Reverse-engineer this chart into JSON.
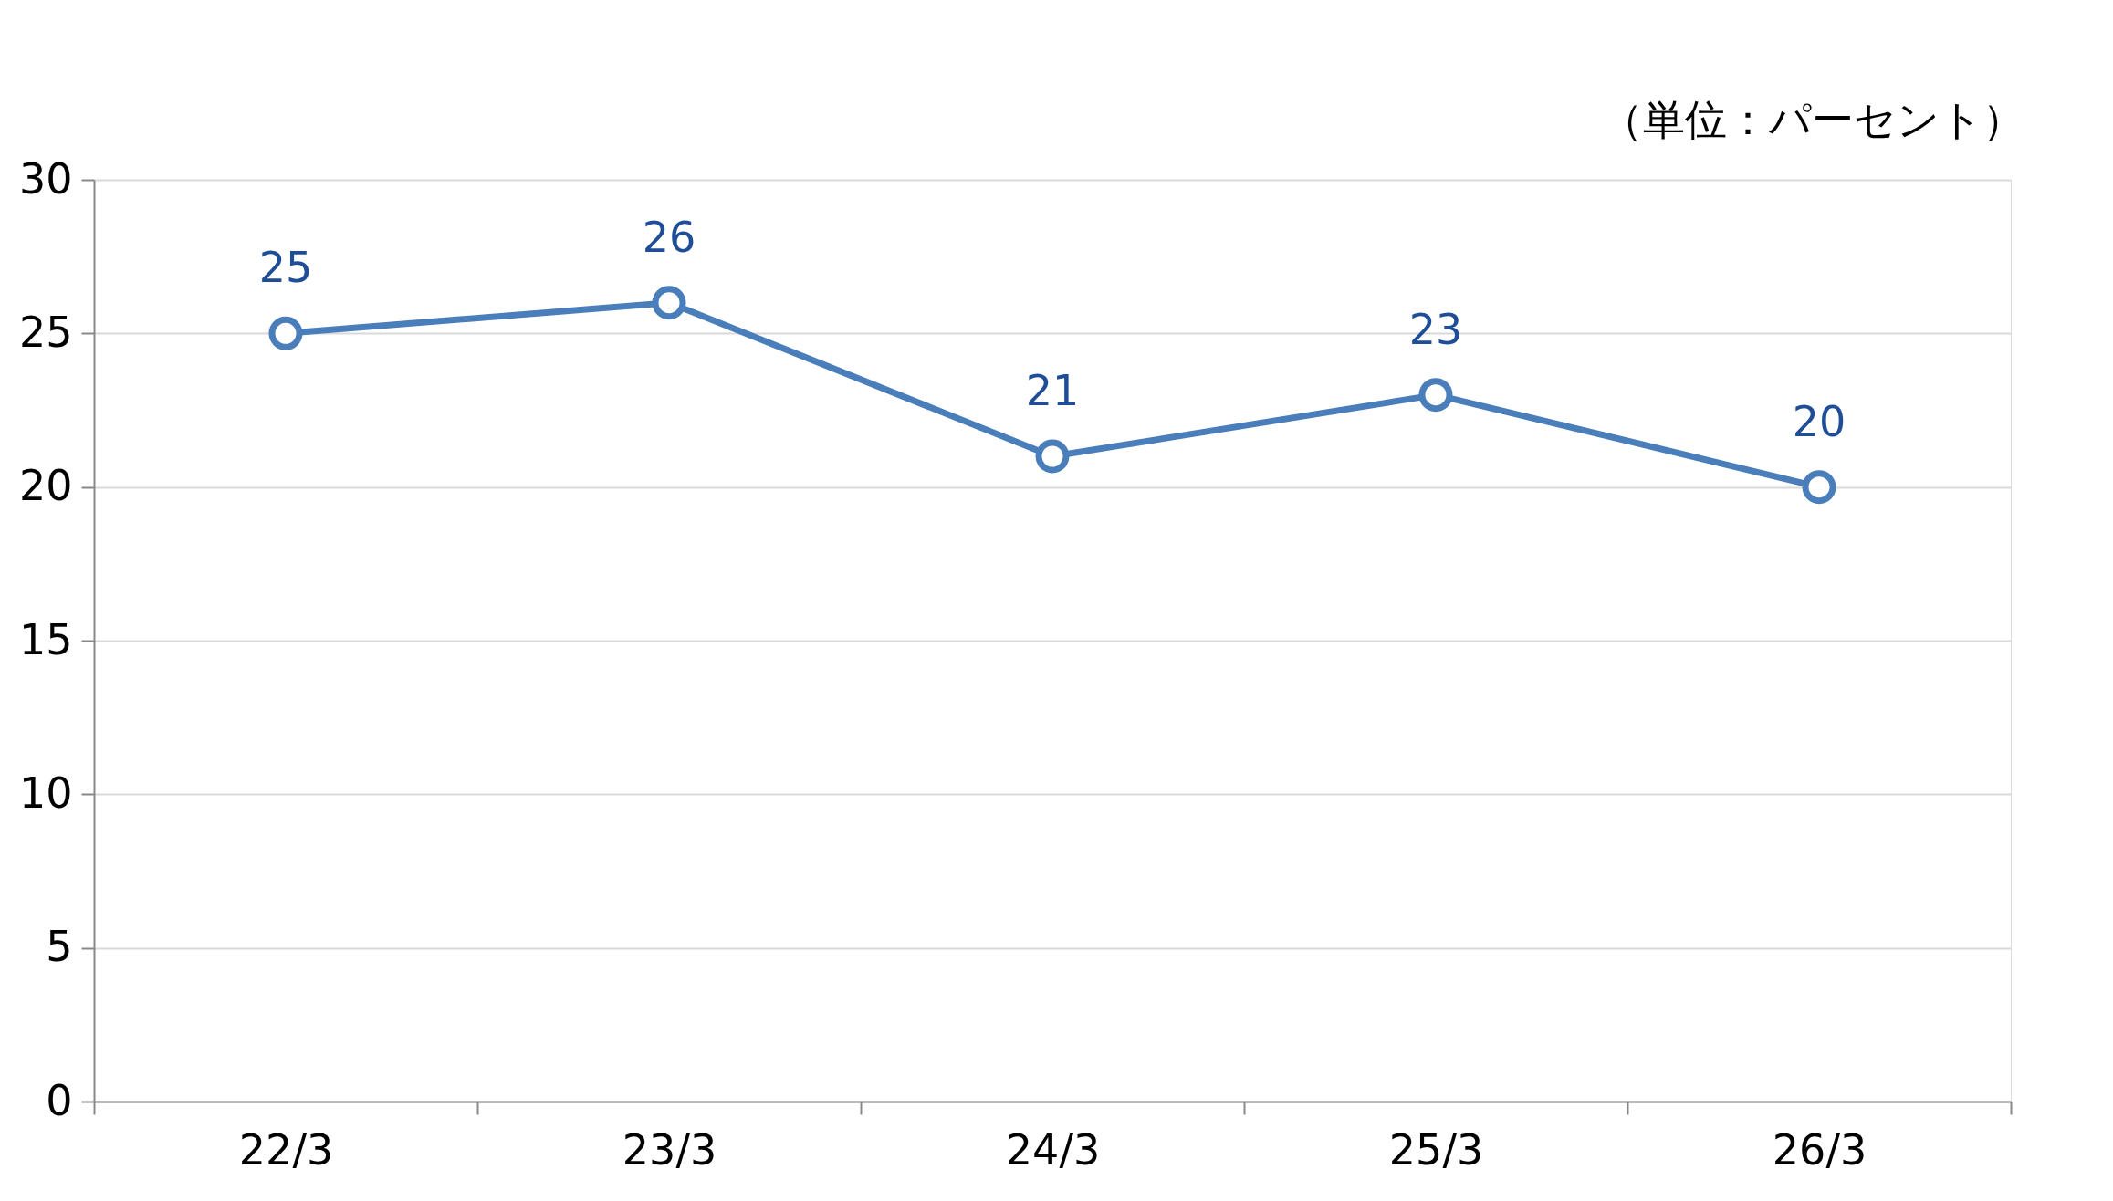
{
  "chart_data": {
    "type": "line",
    "categories": [
      "22/3",
      "23/3",
      "24/3",
      "25/3",
      "26/3"
    ],
    "series": [
      {
        "color": "#4a7ebb",
        "values": [
          25,
          26,
          21,
          23,
          20
        ]
      }
    ],
    "ylim": [
      0,
      30
    ],
    "yticks": [
      0,
      5,
      10,
      15,
      20,
      25,
      30
    ],
    "annotations": [
      "（単位：パーセント）"
    ],
    "grid": "y",
    "marker": "circle",
    "line_style": "solid",
    "data_labels": true
  }
}
